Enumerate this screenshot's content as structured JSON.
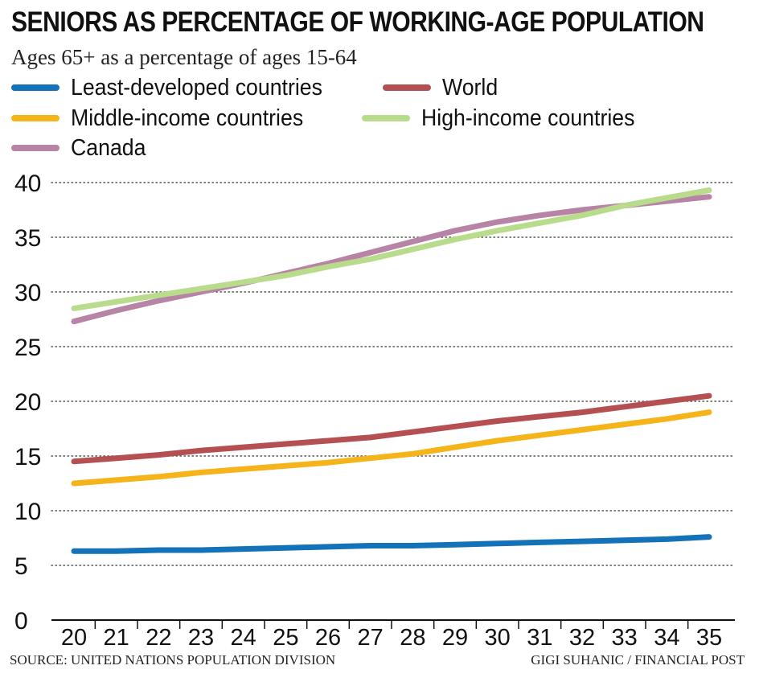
{
  "chart_data": {
    "type": "line",
    "title": "SENIORS AS PERCENTAGE OF WORKING-AGE POPULATION",
    "subtitle": "Ages 65+ as a percentage of ages 15-64",
    "xlabel": "",
    "ylabel": "",
    "x": [
      "20",
      "21",
      "22",
      "23",
      "24",
      "25",
      "26",
      "27",
      "28",
      "29",
      "30",
      "31",
      "32",
      "33",
      "34",
      "35"
    ],
    "ylim": [
      0,
      40
    ],
    "yticks": [
      0,
      5,
      10,
      15,
      20,
      25,
      30,
      35,
      40
    ],
    "grid": "horizontal dotted",
    "legend_placement": "top",
    "series": [
      {
        "name": "Least-developed countries",
        "color": "#1473b8",
        "values": [
          6.3,
          6.3,
          6.4,
          6.4,
          6.5,
          6.6,
          6.7,
          6.8,
          6.8,
          6.9,
          7.0,
          7.1,
          7.2,
          7.3,
          7.4,
          7.6
        ]
      },
      {
        "name": "World",
        "color": "#b55052",
        "values": [
          14.5,
          14.8,
          15.1,
          15.5,
          15.8,
          16.1,
          16.4,
          16.7,
          17.2,
          17.7,
          18.2,
          18.6,
          19.0,
          19.5,
          20.0,
          20.5
        ]
      },
      {
        "name": "Middle-income countries",
        "color": "#f5b41a",
        "values": [
          12.5,
          12.8,
          13.1,
          13.5,
          13.8,
          14.1,
          14.4,
          14.8,
          15.2,
          15.8,
          16.4,
          16.9,
          17.4,
          17.9,
          18.4,
          19.0
        ]
      },
      {
        "name": "High-income countries",
        "color": "#b9dc8c",
        "values": [
          28.5,
          29.1,
          29.7,
          30.3,
          30.9,
          31.5,
          32.3,
          33.0,
          33.9,
          34.8,
          35.6,
          36.3,
          37.0,
          37.9,
          38.6,
          39.3
        ]
      },
      {
        "name": "Canada",
        "color": "#b884a6",
        "values": [
          27.3,
          28.3,
          29.2,
          30.0,
          30.8,
          31.7,
          32.6,
          33.6,
          34.6,
          35.6,
          36.4,
          37.0,
          37.5,
          37.9,
          38.3,
          38.7
        ]
      }
    ]
  },
  "footer": {
    "source": "SOURCE: UNITED NATIONS POPULATION DIVISION",
    "credit": "GIGI SUHANIC / FINANCIAL POST"
  }
}
